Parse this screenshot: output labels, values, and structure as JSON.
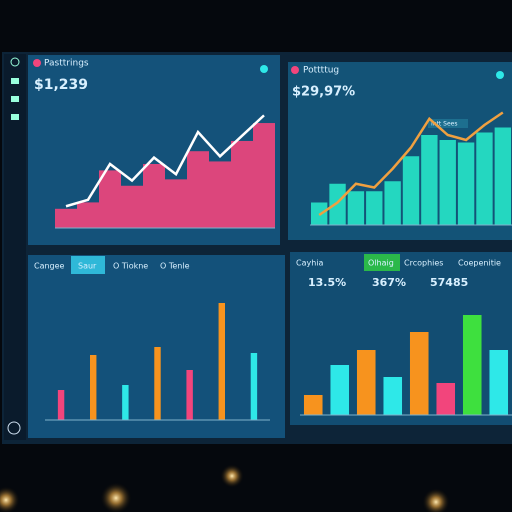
{
  "panels": [
    {
      "title": "Pasttrings",
      "stat": "$1,239",
      "chart": {
        "type": "bar-line",
        "values": [
          15,
          20,
          45,
          33,
          50,
          38,
          60,
          52,
          68,
          82
        ],
        "color": "#f2457c",
        "line": [
          17,
          22,
          50,
          37,
          55,
          42,
          75,
          56,
          72,
          88
        ],
        "line_color": "#ffffff",
        "ylim": [
          0,
          100
        ]
      }
    },
    {
      "title": "Pottttug",
      "stat": "$29,97%",
      "legend": "Intt Sees",
      "chart": {
        "type": "bar-line",
        "values": [
          18,
          33,
          27,
          27,
          35,
          55,
          72,
          68,
          66,
          74,
          78
        ],
        "color": "#27e6c8",
        "line": [
          8,
          18,
          33,
          30,
          45,
          62,
          85,
          72,
          68,
          80,
          90
        ],
        "line_color": "#f0a040",
        "ylim": [
          0,
          100
        ]
      }
    },
    {
      "tabs": [
        "Cangee",
        "Saur",
        "O Tiokne",
        "O Tenle"
      ],
      "chart": {
        "type": "bar",
        "values": [
          30,
          65,
          35,
          73,
          50,
          117,
          67
        ],
        "colors": [
          "#f2457c",
          "#f7931e",
          "#2ee8e8",
          "#f7931e",
          "#f2457c",
          "#f7931e",
          "#2ee8e8"
        ],
        "ylim": [
          0,
          130
        ]
      }
    },
    {
      "title": "Cayhia",
      "tabs": [
        "Olhaig",
        "Crcophies",
        "Coepenitie"
      ],
      "stats": [
        "13.5%",
        "367%",
        "57485"
      ],
      "chart": {
        "type": "bar",
        "values": [
          20,
          50,
          65,
          38,
          83,
          32,
          100,
          65
        ],
        "colors": [
          "#f7931e",
          "#2ee8e8",
          "#f7931e",
          "#2ee8e8",
          "#f7931e",
          "#f2457c",
          "#3ee03e",
          "#2ee8e8"
        ],
        "ylim": [
          0,
          115
        ]
      }
    }
  ]
}
